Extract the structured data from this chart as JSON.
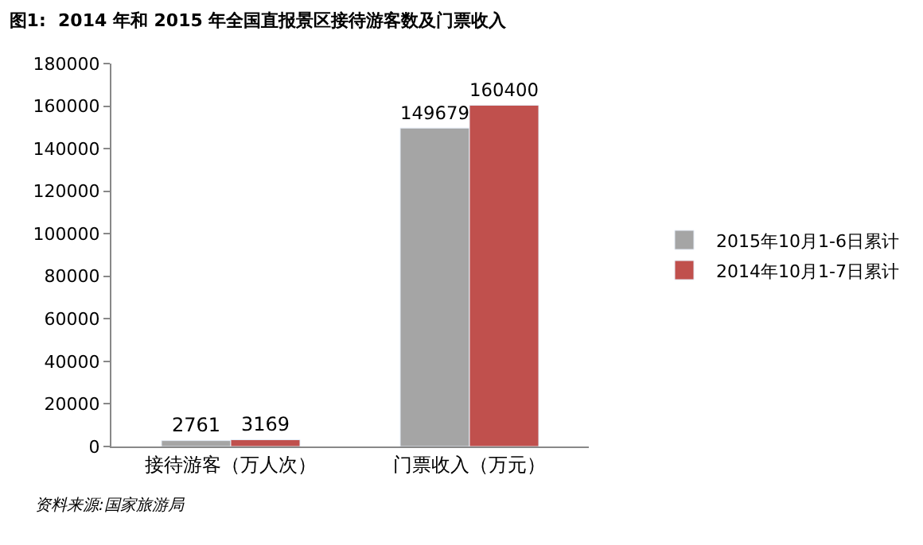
{
  "chart_data": {
    "type": "bar",
    "title": "图1:  2014 年和 2015 年全国直报景区接待游客数及门票收入",
    "categories": [
      "接待游客（万人次）",
      "门票收入（万元）"
    ],
    "series": [
      {
        "name": "2015年10月1-6日累计",
        "color": "#a5a5a5",
        "values": [
          2761,
          149679
        ]
      },
      {
        "name": "2014年10月1-7日累计",
        "color": "#c0504d",
        "values": [
          3169,
          160400
        ]
      }
    ],
    "ylim": [
      0,
      180000
    ],
    "yticks": [
      0,
      20000,
      40000,
      60000,
      80000,
      100000,
      120000,
      140000,
      160000,
      180000
    ],
    "data_labels": true,
    "grid": false,
    "legend": "right",
    "annotations": [
      "资料来源:国家旅游局"
    ]
  }
}
